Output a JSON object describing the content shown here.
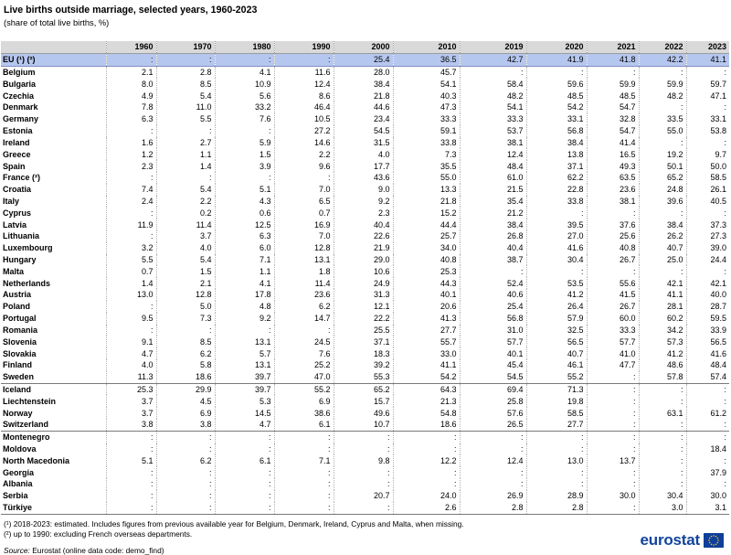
{
  "title": "Live births outside marriage, selected years, 1960-2023",
  "subtitle": "(share of total live births, %)",
  "columns": [
    "1960",
    "1970",
    "1980",
    "1990",
    "2000",
    "2010",
    "2019",
    "2020",
    "2021",
    "2022",
    "2023"
  ],
  "eu": {
    "label": "EU (¹) (²)",
    "values": [
      ":",
      ":",
      ":",
      ":",
      "25.4",
      "36.5",
      "42.7",
      "41.9",
      "41.8",
      "42.2",
      "41.1"
    ]
  },
  "groups": [
    {
      "rows": [
        {
          "label": "Belgium",
          "values": [
            "2.1",
            "2.8",
            "4.1",
            "11.6",
            "28.0",
            "45.7",
            ":",
            ":",
            ":",
            ":",
            ":"
          ]
        },
        {
          "label": "Bulgaria",
          "values": [
            "8.0",
            "8.5",
            "10.9",
            "12.4",
            "38.4",
            "54.1",
            "58.4",
            "59.6",
            "59.9",
            "59.9",
            "59.7"
          ]
        },
        {
          "label": "Czechia",
          "values": [
            "4.9",
            "5.4",
            "5.6",
            "8.6",
            "21.8",
            "40.3",
            "48.2",
            "48.5",
            "48.5",
            "48.2",
            "47.1"
          ]
        },
        {
          "label": "Denmark",
          "values": [
            "7.8",
            "11.0",
            "33.2",
            "46.4",
            "44.6",
            "47.3",
            "54.1",
            "54.2",
            "54.7",
            ":",
            ":"
          ]
        },
        {
          "label": "Germany",
          "values": [
            "6.3",
            "5.5",
            "7.6",
            "10.5",
            "23.4",
            "33.3",
            "33.3",
            "33.1",
            "32.8",
            "33.5",
            "33.1"
          ]
        },
        {
          "label": "Estonia",
          "values": [
            ":",
            ":",
            ":",
            "27.2",
            "54.5",
            "59.1",
            "53.7",
            "56.8",
            "54.7",
            "55.0",
            "53.8"
          ]
        },
        {
          "label": "Ireland",
          "values": [
            "1.6",
            "2.7",
            "5.9",
            "14.6",
            "31.5",
            "33.8",
            "38.1",
            "38.4",
            "41.4",
            ":",
            ":"
          ]
        },
        {
          "label": "Greece",
          "values": [
            "1.2",
            "1.1",
            "1.5",
            "2.2",
            "4.0",
            "7.3",
            "12.4",
            "13.8",
            "16.5",
            "19.2",
            "9.7"
          ]
        },
        {
          "label": "Spain",
          "values": [
            "2.3",
            "1.4",
            "3.9",
            "9.6",
            "17.7",
            "35.5",
            "48.4",
            "37.1",
            "49.3",
            "50.1",
            "50.0"
          ]
        },
        {
          "label": "France (²)",
          "values": [
            ":",
            ":",
            ":",
            ":",
            "43.6",
            "55.0",
            "61.0",
            "62.2",
            "63.5",
            "65.2",
            "58.5"
          ]
        },
        {
          "label": "Croatia",
          "values": [
            "7.4",
            "5.4",
            "5.1",
            "7.0",
            "9.0",
            "13.3",
            "21.5",
            "22.8",
            "23.6",
            "24.8",
            "26.1"
          ]
        },
        {
          "label": "Italy",
          "values": [
            "2.4",
            "2.2",
            "4.3",
            "6.5",
            "9.2",
            "21.8",
            "35.4",
            "33.8",
            "38.1",
            "39.6",
            "40.5"
          ]
        },
        {
          "label": "Cyprus",
          "values": [
            ":",
            "0.2",
            "0.6",
            "0.7",
            "2.3",
            "15.2",
            "21.2",
            ":",
            ":",
            ":",
            ":"
          ]
        },
        {
          "label": "Latvia",
          "values": [
            "11.9",
            "11.4",
            "12.5",
            "16.9",
            "40.4",
            "44.4",
            "38.4",
            "39.5",
            "37.6",
            "38.4",
            "37.3"
          ]
        },
        {
          "label": "Lithuania",
          "values": [
            ":",
            "3.7",
            "6.3",
            "7.0",
            "22.6",
            "25.7",
            "26.8",
            "27.0",
            "25.6",
            "26.2",
            "27.3"
          ]
        },
        {
          "label": "Luxembourg",
          "values": [
            "3.2",
            "4.0",
            "6.0",
            "12.8",
            "21.9",
            "34.0",
            "40.4",
            "41.6",
            "40.8",
            "40.7",
            "39.0"
          ]
        },
        {
          "label": "Hungary",
          "values": [
            "5.5",
            "5.4",
            "7.1",
            "13.1",
            "29.0",
            "40.8",
            "38.7",
            "30.4",
            "26.7",
            "25.0",
            "24.4"
          ]
        },
        {
          "label": "Malta",
          "values": [
            "0.7",
            "1.5",
            "1.1",
            "1.8",
            "10.6",
            "25.3",
            ":",
            ":",
            ":",
            ":",
            ":"
          ]
        },
        {
          "label": "Netherlands",
          "values": [
            "1.4",
            "2.1",
            "4.1",
            "11.4",
            "24.9",
            "44.3",
            "52.4",
            "53.5",
            "55.6",
            "42.1",
            "42.1"
          ]
        },
        {
          "label": "Austria",
          "values": [
            "13.0",
            "12.8",
            "17.8",
            "23.6",
            "31.3",
            "40.1",
            "40.6",
            "41.2",
            "41.5",
            "41.1",
            "40.0"
          ]
        },
        {
          "label": "Poland",
          "values": [
            ":",
            "5.0",
            "4.8",
            "6.2",
            "12.1",
            "20.6",
            "25.4",
            "26.4",
            "26.7",
            "28.1",
            "28.7"
          ]
        },
        {
          "label": "Portugal",
          "values": [
            "9.5",
            "7.3",
            "9.2",
            "14.7",
            "22.2",
            "41.3",
            "56.8",
            "57.9",
            "60.0",
            "60.2",
            "59.5"
          ]
        },
        {
          "label": "Romania",
          "values": [
            ":",
            ":",
            ":",
            ":",
            "25.5",
            "27.7",
            "31.0",
            "32.5",
            "33.3",
            "34.2",
            "33.9"
          ]
        },
        {
          "label": "Slovenia",
          "values": [
            "9.1",
            "8.5",
            "13.1",
            "24.5",
            "37.1",
            "55.7",
            "57.7",
            "56.5",
            "57.7",
            "57.3",
            "56.5"
          ]
        },
        {
          "label": "Slovakia",
          "values": [
            "4.7",
            "6.2",
            "5.7",
            "7.6",
            "18.3",
            "33.0",
            "40.1",
            "40.7",
            "41.0",
            "41.2",
            "41.6"
          ]
        },
        {
          "label": "Finland",
          "values": [
            "4.0",
            "5.8",
            "13.1",
            "25.2",
            "39.2",
            "41.1",
            "45.4",
            "46.1",
            "47.7",
            "48.6",
            "48.4"
          ]
        },
        {
          "label": "Sweden",
          "values": [
            "11.3",
            "18.6",
            "39.7",
            "47.0",
            "55.3",
            "54.2",
            "54.5",
            "55.2",
            ":",
            "57.8",
            "57.4"
          ]
        }
      ]
    },
    {
      "rows": [
        {
          "label": "Iceland",
          "values": [
            "25.3",
            "29.9",
            "39.7",
            "55.2",
            "65.2",
            "64.3",
            "69.4",
            "71.3",
            ":",
            ":",
            ":"
          ]
        },
        {
          "label": "Liechtenstein",
          "values": [
            "3.7",
            "4.5",
            "5.3",
            "6.9",
            "15.7",
            "21.3",
            "25.8",
            "19.8",
            ":",
            ":",
            ":"
          ]
        },
        {
          "label": "Norway",
          "values": [
            "3.7",
            "6.9",
            "14.5",
            "38.6",
            "49.6",
            "54.8",
            "57.6",
            "58.5",
            ":",
            "63.1",
            "61.2"
          ]
        },
        {
          "label": "Switzerland",
          "values": [
            "3.8",
            "3.8",
            "4.7",
            "6.1",
            "10.7",
            "18.6",
            "26.5",
            "27.7",
            ":",
            ":",
            ":"
          ]
        }
      ]
    },
    {
      "rows": [
        {
          "label": "Montenegro",
          "values": [
            ":",
            ":",
            ":",
            ":",
            ":",
            ":",
            ":",
            ":",
            ":",
            ":",
            ":"
          ]
        },
        {
          "label": "Moldova",
          "values": [
            ":",
            ":",
            ":",
            ":",
            ":",
            ":",
            ":",
            ":",
            ":",
            ":",
            "18.4"
          ]
        },
        {
          "label": "North Macedonia",
          "values": [
            "5.1",
            "6.2",
            "6.1",
            "7.1",
            "9.8",
            "12.2",
            "12.4",
            "13.0",
            "13.7",
            ":",
            ":"
          ]
        },
        {
          "label": "Georgia",
          "values": [
            ":",
            ":",
            ":",
            ":",
            ":",
            ":",
            ":",
            ":",
            ":",
            ":",
            "37.9"
          ]
        },
        {
          "label": "Albania",
          "values": [
            ":",
            ":",
            ":",
            ":",
            ":",
            ":",
            ":",
            ":",
            ":",
            ":",
            ":"
          ]
        },
        {
          "label": "Serbia",
          "values": [
            ":",
            ":",
            ":",
            ":",
            "20.7",
            "24.0",
            "26.9",
            "28.9",
            "30.0",
            "30.4",
            "30.0"
          ]
        },
        {
          "label": "Türkiye",
          "values": [
            ":",
            ":",
            ":",
            ":",
            ":",
            "2.6",
            "2.8",
            "2.8",
            ":",
            "3.0",
            "3.1"
          ]
        }
      ]
    }
  ],
  "notes": [
    "(¹) 2018-2023: estimated. Includes figures from previous available year for Belgium, Denmark, Ireland, Cyprus and Malta, when missing.",
    "(²) up to 1990: excluding French overseas departments."
  ],
  "source_label": "Source:",
  "source_text": "Eurostat (online data code: demo_find)",
  "logo_text": "eurostat",
  "colors": {
    "header_bg": "#d9d9d9",
    "eu_row_bg": "#b6c7ef",
    "logo_blue": "#11449a",
    "flag_blue": "#0f3f9b",
    "flag_star": "#ffcc00"
  }
}
